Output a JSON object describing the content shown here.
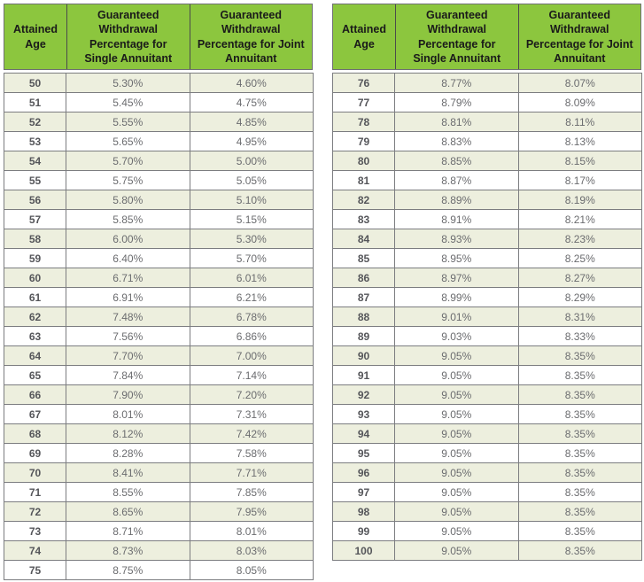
{
  "colors": {
    "header_green": "#8CC63E",
    "row_shaded": "#EDEFDE",
    "border_gray": "#7C7D80",
    "header_border": "#6E6F72",
    "header_divider": "#4B4B4B",
    "header_text": "#1A1A1A",
    "age_text": "#55565A",
    "value_text": "#6B6C6F"
  },
  "tables": [
    {
      "headers": [
        "Attained Age",
        "Guaranteed Withdrawal Percentage for Single Annuitant",
        "Guaranteed Withdrawal Percentage for Joint Annuitant"
      ],
      "rows": [
        {
          "age": "50",
          "single": "5.30%",
          "joint": "4.60%"
        },
        {
          "age": "51",
          "single": "5.45%",
          "joint": "4.75%"
        },
        {
          "age": "52",
          "single": "5.55%",
          "joint": "4.85%"
        },
        {
          "age": "53",
          "single": "5.65%",
          "joint": "4.95%"
        },
        {
          "age": "54",
          "single": "5.70%",
          "joint": "5.00%"
        },
        {
          "age": "55",
          "single": "5.75%",
          "joint": "5.05%"
        },
        {
          "age": "56",
          "single": "5.80%",
          "joint": "5.10%"
        },
        {
          "age": "57",
          "single": "5.85%",
          "joint": "5.15%"
        },
        {
          "age": "58",
          "single": "6.00%",
          "joint": "5.30%"
        },
        {
          "age": "59",
          "single": "6.40%",
          "joint": "5.70%"
        },
        {
          "age": "60",
          "single": "6.71%",
          "joint": "6.01%"
        },
        {
          "age": "61",
          "single": "6.91%",
          "joint": "6.21%"
        },
        {
          "age": "62",
          "single": "7.48%",
          "joint": "6.78%"
        },
        {
          "age": "63",
          "single": "7.56%",
          "joint": "6.86%"
        },
        {
          "age": "64",
          "single": "7.70%",
          "joint": "7.00%"
        },
        {
          "age": "65",
          "single": "7.84%",
          "joint": "7.14%"
        },
        {
          "age": "66",
          "single": "7.90%",
          "joint": "7.20%"
        },
        {
          "age": "67",
          "single": "8.01%",
          "joint": "7.31%"
        },
        {
          "age": "68",
          "single": "8.12%",
          "joint": "7.42%"
        },
        {
          "age": "69",
          "single": "8.28%",
          "joint": "7.58%"
        },
        {
          "age": "70",
          "single": "8.41%",
          "joint": "7.71%"
        },
        {
          "age": "71",
          "single": "8.55%",
          "joint": "7.85%"
        },
        {
          "age": "72",
          "single": "8.65%",
          "joint": "7.95%"
        },
        {
          "age": "73",
          "single": "8.71%",
          "joint": "8.01%"
        },
        {
          "age": "74",
          "single": "8.73%",
          "joint": "8.03%"
        },
        {
          "age": "75",
          "single": "8.75%",
          "joint": "8.05%"
        }
      ]
    },
    {
      "headers": [
        "Attained Age",
        "Guaranteed Withdrawal Percentage for Single Annuitant",
        "Guaranteed Withdrawal Percentage for Joint Annuitant"
      ],
      "rows": [
        {
          "age": "76",
          "single": "8.77%",
          "joint": "8.07%"
        },
        {
          "age": "77",
          "single": "8.79%",
          "joint": "8.09%"
        },
        {
          "age": "78",
          "single": "8.81%",
          "joint": "8.11%"
        },
        {
          "age": "79",
          "single": "8.83%",
          "joint": "8.13%"
        },
        {
          "age": "80",
          "single": "8.85%",
          "joint": "8.15%"
        },
        {
          "age": "81",
          "single": "8.87%",
          "joint": "8.17%"
        },
        {
          "age": "82",
          "single": "8.89%",
          "joint": "8.19%"
        },
        {
          "age": "83",
          "single": "8.91%",
          "joint": "8.21%"
        },
        {
          "age": "84",
          "single": "8.93%",
          "joint": "8.23%"
        },
        {
          "age": "85",
          "single": "8.95%",
          "joint": "8.25%"
        },
        {
          "age": "86",
          "single": "8.97%",
          "joint": "8.27%"
        },
        {
          "age": "87",
          "single": "8.99%",
          "joint": "8.29%"
        },
        {
          "age": "88",
          "single": "9.01%",
          "joint": "8.31%"
        },
        {
          "age": "89",
          "single": "9.03%",
          "joint": "8.33%"
        },
        {
          "age": "90",
          "single": "9.05%",
          "joint": "8.35%"
        },
        {
          "age": "91",
          "single": "9.05%",
          "joint": "8.35%"
        },
        {
          "age": "92",
          "single": "9.05%",
          "joint": "8.35%"
        },
        {
          "age": "93",
          "single": "9.05%",
          "joint": "8.35%"
        },
        {
          "age": "94",
          "single": "9.05%",
          "joint": "8.35%"
        },
        {
          "age": "95",
          "single": "9.05%",
          "joint": "8.35%"
        },
        {
          "age": "96",
          "single": "9.05%",
          "joint": "8.35%"
        },
        {
          "age": "97",
          "single": "9.05%",
          "joint": "8.35%"
        },
        {
          "age": "98",
          "single": "9.05%",
          "joint": "8.35%"
        },
        {
          "age": "99",
          "single": "9.05%",
          "joint": "8.35%"
        },
        {
          "age": "100",
          "single": "9.05%",
          "joint": "8.35%"
        }
      ]
    }
  ]
}
